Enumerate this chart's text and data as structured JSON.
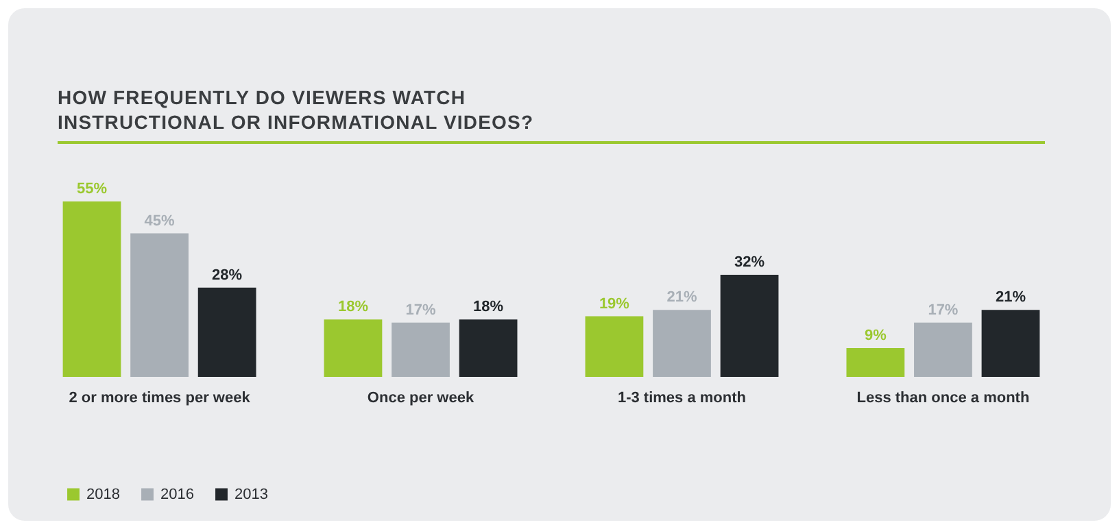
{
  "chart_data": {
    "type": "bar",
    "title": "HOW FREQUENTLY DO VIEWERS WATCH INSTRUCTIONAL OR INFORMATIONAL VIDEOS?",
    "categories": [
      "2 or more times per week",
      "Once per week",
      "1-3 times a month",
      "Less than once a month"
    ],
    "series": [
      {
        "name": "2018",
        "color": "#9bc82f",
        "values": [
          55,
          18,
          19,
          9
        ],
        "value_labels": [
          "55%",
          "18%",
          "19%",
          "9%"
        ]
      },
      {
        "name": "2016",
        "color": "#a8afb6",
        "values": [
          45,
          17,
          21,
          17
        ],
        "value_labels": [
          "45%",
          "17%",
          "21%",
          "17%"
        ]
      },
      {
        "name": "2013",
        "color": "#22272b",
        "values": [
          28,
          18,
          32,
          21
        ],
        "value_labels": [
          "28%",
          "18%",
          "32%",
          "21%"
        ]
      }
    ],
    "grid": false,
    "legend": "bottom left"
  }
}
